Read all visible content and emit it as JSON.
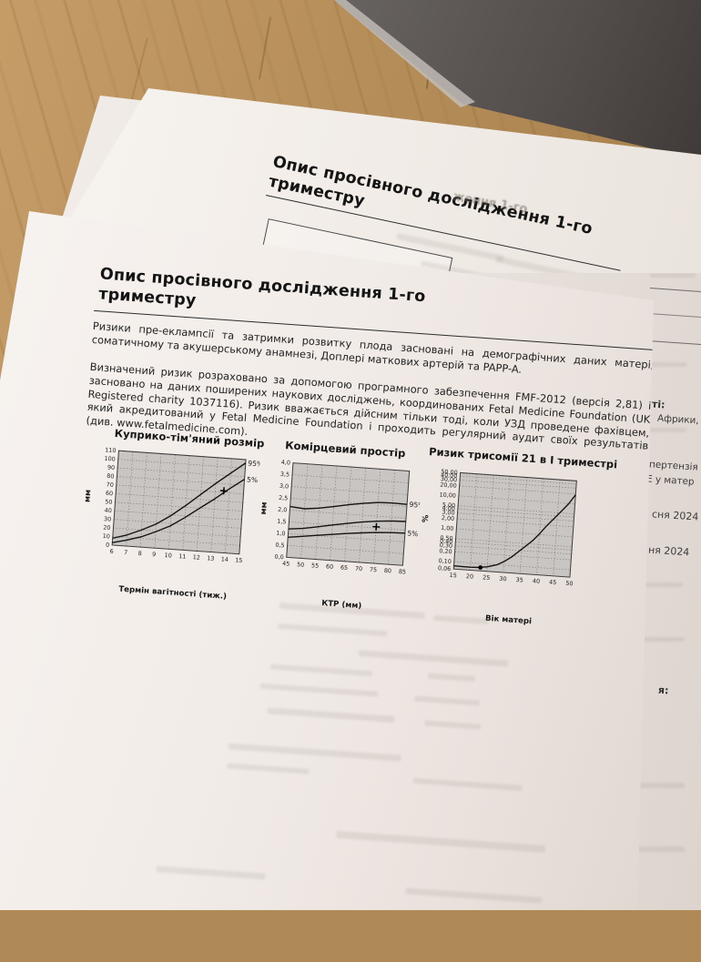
{
  "back_sheet": {
    "title": "Опис просівного дослідження 1-го триместру",
    "bleed_fragment": "ження 1-го"
  },
  "front_sheet": {
    "title": "Опис просівного дослідження 1-го триместру",
    "paragraph1": "Ризики пре-еклампсії та затримки розвитку плода засновані на демографічних даних матері, соматичному та акушерському анамнезі, Доплері маткових артерій та PAPP-A.",
    "paragraph2": "Визначений ризик розраховано за допомогою програмного забезпечення FMF-2012 (версія 2,81) і засновано на даних поширених наукових досліджень, координованих Fetal Medicine Foundation (UK Registered charity 1037116). Ризик вважається дійсним тільки тоді, коли УЗД проведене фахівцем, який акредитований у Fetal Medicine Foundation і проходить регулярний аудит своїх результатів (див. www.fetalmedicine.com)."
  },
  "side_sheet": {
    "fragments": [
      "ті:",
      "Африки,",
      "пертензія",
      "Е у матер",
      "сня 2024",
      "ня 2024",
      "я:"
    ]
  },
  "chart_data": [
    {
      "type": "line",
      "title": "Куприко-тім'яний розмір",
      "xlabel": "Термін вагітності (тиж.)",
      "ylabel": "мм",
      "xlim": [
        6,
        15
      ],
      "ylim": [
        0,
        110
      ],
      "grid": true,
      "plot_bg": "#c9c5c2",
      "xticks": [
        6,
        7,
        8,
        9,
        10,
        11,
        12,
        13,
        14,
        15
      ],
      "xtick_labels": [
        "6",
        "7",
        "8",
        "9",
        "10",
        "11",
        "12",
        "13",
        "14",
        "15"
      ],
      "yticks": [
        0,
        10,
        20,
        30,
        40,
        50,
        60,
        70,
        80,
        90,
        100,
        110
      ],
      "ytick_labels": [
        "0",
        "10",
        "20",
        "30",
        "40",
        "50",
        "60",
        "70",
        "80",
        "90",
        "100",
        "110"
      ],
      "series": [
        {
          "name": "95th percentile",
          "label": "95%",
          "x": [
            6,
            7,
            8,
            9,
            10,
            11,
            12,
            13,
            14,
            15
          ],
          "y": [
            8,
            13,
            20,
            28,
            39,
            52,
            66,
            80,
            93,
            106
          ]
        },
        {
          "name": "5th percentile",
          "label": "5%",
          "x": [
            6,
            7,
            8,
            9,
            10,
            11,
            12,
            13,
            14,
            15
          ],
          "y": [
            3,
            7,
            12,
            19,
            27,
            38,
            50,
            62,
            75,
            87
          ]
        }
      ],
      "marker": {
        "x": 13.6,
        "y": 72,
        "glyph": "+"
      }
    },
    {
      "type": "line",
      "title": "Комірцевий простір",
      "xlabel": "КТР (мм)",
      "ylabel": "мм",
      "xlim": [
        45,
        85
      ],
      "ylim": [
        0,
        4
      ],
      "grid": true,
      "plot_bg": "#c9c5c2",
      "xticks": [
        45,
        50,
        55,
        60,
        65,
        70,
        75,
        80,
        85
      ],
      "xtick_labels": [
        "45",
        "50",
        "55",
        "60",
        "65",
        "70",
        "75",
        "80",
        "85"
      ],
      "yticks": [
        0,
        0.5,
        1,
        1.5,
        2,
        2.5,
        3,
        3.5,
        4
      ],
      "ytick_labels": [
        "0,0",
        "0,5",
        "1,0",
        "1,5",
        "2,0",
        "2,5",
        "3,0",
        "3,5",
        "4,0"
      ],
      "series": [
        {
          "name": "95th percentile",
          "label": "95%",
          "x": [
            45,
            50,
            55,
            60,
            65,
            70,
            75,
            80,
            85
          ],
          "y": [
            2.15,
            2.1,
            2.17,
            2.28,
            2.4,
            2.5,
            2.58,
            2.6,
            2.59
          ]
        },
        {
          "name": "median",
          "label": "",
          "x": [
            45,
            50,
            55,
            60,
            65,
            70,
            75,
            80,
            85
          ],
          "y": [
            1.2,
            1.27,
            1.38,
            1.5,
            1.61,
            1.71,
            1.79,
            1.84,
            1.86
          ]
        },
        {
          "name": "5th percentile",
          "label": "5%",
          "x": [
            45,
            50,
            55,
            60,
            65,
            70,
            75,
            80,
            85
          ],
          "y": [
            0.85,
            0.93,
            1.02,
            1.1,
            1.18,
            1.25,
            1.31,
            1.35,
            1.37
          ]
        }
      ],
      "marker": {
        "x": 75,
        "y": 1.55,
        "glyph": "+"
      }
    },
    {
      "type": "line",
      "title": "Ризик трисомії 21 в І триместрі",
      "xlabel": "Вік матері",
      "ylabel": "%",
      "log_y": true,
      "xlim": [
        15,
        50
      ],
      "ylim": [
        0.06,
        50
      ],
      "grid": true,
      "plot_bg": "#c9c5c2",
      "xticks": [
        15,
        20,
        25,
        30,
        35,
        40,
        45,
        50
      ],
      "xtick_labels": [
        "15",
        "20",
        "25",
        "30",
        "35",
        "40",
        "45",
        "50"
      ],
      "yticks": [
        50,
        40,
        30,
        20,
        10,
        5,
        4,
        3,
        2,
        1,
        0.5,
        0.4,
        0.3,
        0.2,
        0.1,
        0.06
      ],
      "ytick_labels": [
        "50,00",
        "40,00",
        "30,00",
        "20,00",
        "10,00",
        "5,00",
        "4,00",
        "3,00",
        "2,00",
        "1,00",
        "0,50",
        "0,40",
        "0,30",
        "0,20",
        "0,10",
        "0,06"
      ],
      "series": [
        {
          "name": "age-related risk",
          "label": "",
          "x": [
            15,
            18,
            20,
            22,
            25,
            28,
            30,
            32,
            35,
            38,
            40,
            42,
            45,
            48,
            50
          ],
          "y": [
            0.075,
            0.074,
            0.074,
            0.075,
            0.082,
            0.1,
            0.13,
            0.18,
            0.33,
            0.62,
            1.05,
            1.9,
            4.2,
            9.5,
            19
          ]
        }
      ],
      "marker": {
        "x": 23,
        "y": 0.076,
        "glyph": "dot"
      }
    }
  ]
}
